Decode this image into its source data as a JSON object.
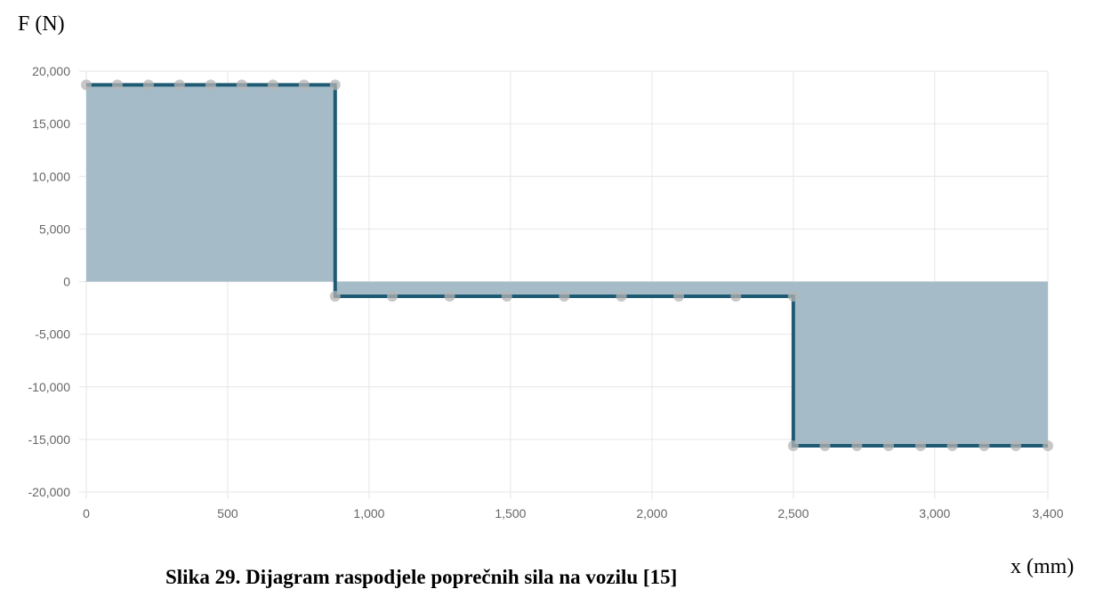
{
  "y_axis_title": "F (N)",
  "x_axis_title": "x (mm)",
  "caption": "Slika 29. Dijagram raspodjele poprečnih sila na vozilu [15]",
  "colors": {
    "line": "#1f5a73",
    "fill": "#a5bcc8",
    "grid": "#e6e6e6",
    "point": "#b4b4b4"
  },
  "chart_data": {
    "type": "area",
    "xlabel": "x (mm)",
    "ylabel": "F (N)",
    "xlim": [
      0,
      3400
    ],
    "ylim": [
      -20000,
      20000
    ],
    "xticks": [
      0,
      500,
      1000,
      1500,
      2000,
      2500,
      3000,
      3400
    ],
    "xtick_labels": [
      "0",
      "500",
      "1,000",
      "1,500",
      "2,000",
      "2,500",
      "3,000",
      "3,400"
    ],
    "yticks": [
      20000,
      15000,
      10000,
      5000,
      0,
      -5000,
      -10000,
      -15000,
      -20000
    ],
    "ytick_labels": [
      "20,000",
      "15,000",
      "10,000",
      "5,000",
      "0",
      "-5,000",
      "-10,000",
      "-15,000",
      "-20,000"
    ],
    "grid": true,
    "series": [
      {
        "step_points": [
          [
            0,
            18700
          ],
          [
            880,
            18700
          ],
          [
            880,
            -1400
          ],
          [
            2500,
            -1400
          ],
          [
            2500,
            -15600
          ],
          [
            3400,
            -15600
          ]
        ],
        "markers": [
          [
            0,
            18700
          ],
          [
            110,
            18700
          ],
          [
            220,
            18700
          ],
          [
            330,
            18700
          ],
          [
            440,
            18700
          ],
          [
            550,
            18700
          ],
          [
            660,
            18700
          ],
          [
            770,
            18700
          ],
          [
            880,
            18700
          ],
          [
            880,
            -1400
          ],
          [
            1082,
            -1400
          ],
          [
            1285,
            -1400
          ],
          [
            1487,
            -1400
          ],
          [
            1690,
            -1400
          ],
          [
            1892,
            -1400
          ],
          [
            2095,
            -1400
          ],
          [
            2297,
            -1400
          ],
          [
            2500,
            -1400
          ],
          [
            2500,
            -15600
          ],
          [
            2612,
            -15600
          ],
          [
            2725,
            -15600
          ],
          [
            2837,
            -15600
          ],
          [
            2950,
            -15600
          ],
          [
            3062,
            -15600
          ],
          [
            3175,
            -15600
          ],
          [
            3287,
            -15600
          ],
          [
            3400,
            -15600
          ]
        ]
      }
    ]
  }
}
